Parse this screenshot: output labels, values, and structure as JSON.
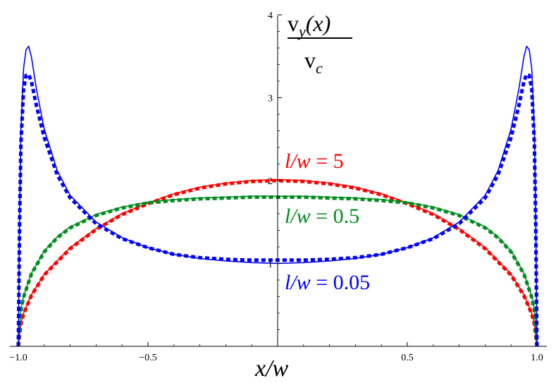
{
  "chart_data": {
    "type": "line",
    "xlabel": "x/w",
    "ylabel": {
      "numerator": "v_y(x)",
      "denominator": "v_c"
    },
    "xlim": [
      -1.0,
      1.0
    ],
    "ylim": [
      0,
      4
    ],
    "xticks": [
      -1.0,
      -0.5,
      0.5,
      1.0
    ],
    "xtick_labels": [
      "−1.0",
      "−0.5",
      "0.5",
      "1.0"
    ],
    "yticks": [
      1,
      2,
      3,
      4
    ],
    "ytick_labels": [
      "1",
      "2",
      "3",
      "4"
    ],
    "grid": false,
    "series": [
      {
        "name": "l/w = 5",
        "color": "#ff0000",
        "x": [
          -1.0,
          -0.99,
          -0.98,
          -0.95,
          -0.9,
          -0.8,
          -0.7,
          -0.6,
          -0.5,
          -0.4,
          -0.3,
          -0.2,
          -0.1,
          0.0,
          0.1,
          0.2,
          0.3,
          0.4,
          0.5,
          0.6,
          0.7,
          0.8,
          0.9,
          0.95,
          0.98,
          0.99,
          1.0
        ],
        "y_solid": [
          0.0,
          0.28,
          0.4,
          0.62,
          0.87,
          1.19,
          1.42,
          1.6,
          1.73,
          1.84,
          1.92,
          1.97,
          2.0,
          2.01,
          2.0,
          1.97,
          1.92,
          1.84,
          1.73,
          1.6,
          1.42,
          1.19,
          0.87,
          0.62,
          0.4,
          0.28,
          0.0
        ],
        "y_dashed": [
          0.0,
          0.27,
          0.39,
          0.61,
          0.86,
          1.18,
          1.41,
          1.59,
          1.72,
          1.83,
          1.91,
          1.96,
          1.99,
          2.0,
          1.99,
          1.96,
          1.91,
          1.83,
          1.72,
          1.59,
          1.41,
          1.18,
          0.86,
          0.61,
          0.39,
          0.27,
          0.0
        ]
      },
      {
        "name": "l/w = 0.5",
        "color": "#008c1e",
        "x": [
          -1.0,
          -0.99,
          -0.98,
          -0.95,
          -0.9,
          -0.85,
          -0.8,
          -0.7,
          -0.6,
          -0.5,
          -0.4,
          -0.3,
          -0.2,
          -0.1,
          0.0,
          0.1,
          0.2,
          0.3,
          0.4,
          0.5,
          0.6,
          0.7,
          0.8,
          0.85,
          0.9,
          0.95,
          0.98,
          0.99,
          1.0
        ],
        "y_solid": [
          0.0,
          0.45,
          0.6,
          0.88,
          1.15,
          1.32,
          1.44,
          1.59,
          1.68,
          1.74,
          1.77,
          1.79,
          1.8,
          1.81,
          1.81,
          1.81,
          1.8,
          1.79,
          1.77,
          1.74,
          1.68,
          1.59,
          1.44,
          1.32,
          1.15,
          0.88,
          0.6,
          0.45,
          0.0
        ],
        "y_dashed": [
          0.0,
          0.44,
          0.59,
          0.87,
          1.14,
          1.31,
          1.43,
          1.58,
          1.67,
          1.73,
          1.76,
          1.78,
          1.79,
          1.8,
          1.8,
          1.8,
          1.79,
          1.78,
          1.76,
          1.73,
          1.67,
          1.58,
          1.43,
          1.31,
          1.14,
          0.87,
          0.59,
          0.44,
          0.0
        ]
      },
      {
        "name": "l/w = 0.05",
        "color": "#0000ff",
        "x": [
          -1.0,
          -0.995,
          -0.99,
          -0.98,
          -0.97,
          -0.96,
          -0.95,
          -0.94,
          -0.93,
          -0.9,
          -0.85,
          -0.8,
          -0.7,
          -0.6,
          -0.5,
          -0.4,
          -0.3,
          -0.2,
          -0.1,
          0.0,
          0.1,
          0.2,
          0.3,
          0.4,
          0.5,
          0.6,
          0.7,
          0.8,
          0.85,
          0.9,
          0.93,
          0.94,
          0.95,
          0.96,
          0.97,
          0.98,
          0.99,
          0.995,
          1.0
        ],
        "y_solid": [
          0.0,
          1.6,
          2.6,
          3.35,
          3.58,
          3.62,
          3.5,
          3.3,
          3.1,
          2.62,
          2.12,
          1.82,
          1.5,
          1.31,
          1.19,
          1.11,
          1.06,
          1.03,
          1.01,
          1.0,
          1.01,
          1.03,
          1.06,
          1.11,
          1.19,
          1.31,
          1.5,
          1.82,
          2.12,
          2.62,
          3.1,
          3.3,
          3.5,
          3.62,
          3.58,
          3.35,
          2.6,
          1.6,
          0.0
        ],
        "y_dashed": [
          0.0,
          1.5,
          2.45,
          3.1,
          3.27,
          3.28,
          3.2,
          3.05,
          2.9,
          2.52,
          2.07,
          1.79,
          1.48,
          1.3,
          1.19,
          1.11,
          1.07,
          1.05,
          1.04,
          1.04,
          1.04,
          1.05,
          1.07,
          1.11,
          1.19,
          1.3,
          1.48,
          1.79,
          2.07,
          2.52,
          2.9,
          3.05,
          3.2,
          3.28,
          3.27,
          3.1,
          2.45,
          1.5,
          0.0
        ]
      }
    ],
    "annotations": [
      {
        "prefix": "l/w",
        "suffix": " = 5",
        "series": "l/w = 5"
      },
      {
        "prefix": "l/w",
        "suffix": " = 0.5",
        "series": "l/w = 0.5"
      },
      {
        "prefix": "l/w",
        "suffix": " = 0.05",
        "series": "l/w = 0.05"
      }
    ]
  }
}
